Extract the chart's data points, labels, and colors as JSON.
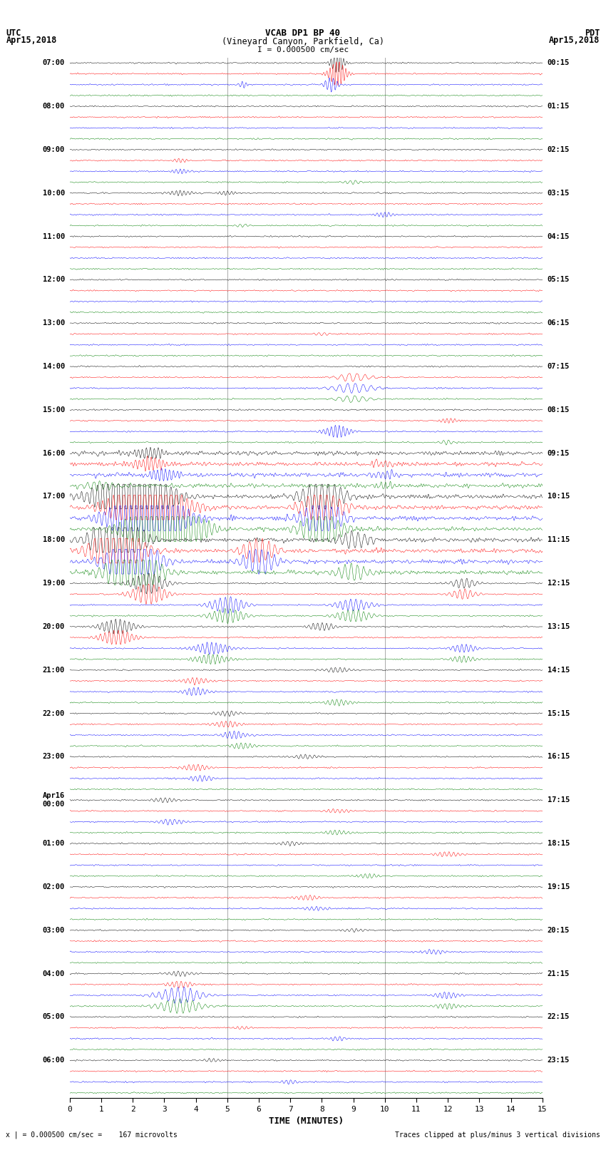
{
  "title_line1": "VCAB DP1 BP 40",
  "title_line2": "(Vineyard Canyon, Parkfield, Ca)",
  "scale_label": "I = 0.000500 cm/sec",
  "left_header1": "UTC",
  "left_header2": "Apr15,2018",
  "right_header1": "PDT",
  "right_header2": "Apr15,2018",
  "footer_left": "x | = 0.000500 cm/sec =    167 microvolts",
  "footer_right": "Traces clipped at plus/minus 3 vertical divisions",
  "xlabel": "TIME (MINUTES)",
  "xlim": [
    0,
    15
  ],
  "xticks": [
    0,
    1,
    2,
    3,
    4,
    5,
    6,
    7,
    8,
    9,
    10,
    11,
    12,
    13,
    14,
    15
  ],
  "utc_labels": [
    "07:00",
    "08:00",
    "09:00",
    "10:00",
    "11:00",
    "12:00",
    "13:00",
    "14:00",
    "15:00",
    "16:00",
    "17:00",
    "18:00",
    "19:00",
    "20:00",
    "21:00",
    "22:00",
    "23:00",
    "Apr16\n00:00",
    "01:00",
    "02:00",
    "03:00",
    "04:00",
    "05:00",
    "06:00"
  ],
  "pdt_labels": [
    "00:15",
    "01:15",
    "02:15",
    "03:15",
    "04:15",
    "05:15",
    "06:15",
    "07:15",
    "08:15",
    "09:15",
    "10:15",
    "11:15",
    "12:15",
    "13:15",
    "14:15",
    "15:15",
    "16:15",
    "17:15",
    "18:15",
    "19:15",
    "20:15",
    "21:15",
    "22:15",
    "23:15"
  ],
  "n_hours": 24,
  "traces_per_hour": 4,
  "colors": [
    "black",
    "red",
    "blue",
    "green"
  ],
  "bg_color": "white",
  "figure_width": 8.5,
  "figure_height": 16.13,
  "vline_color": "#aaaaaa",
  "vline_positions": [
    5.0,
    10.0
  ],
  "noise_base": 0.04,
  "sample_points": 1500
}
